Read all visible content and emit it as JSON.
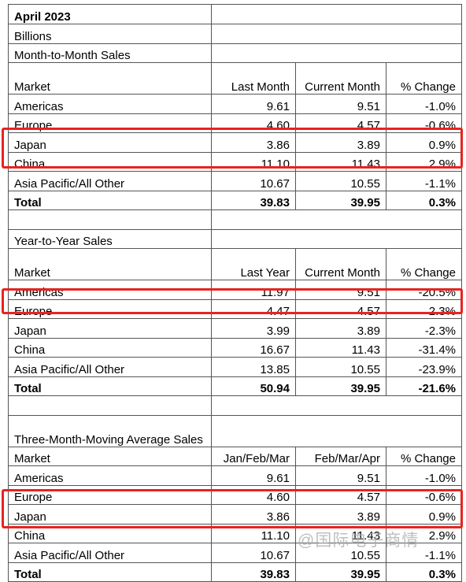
{
  "title": "April 2023",
  "unit": "Billions",
  "sections": [
    {
      "title": "Month-to-Month Sales",
      "columns": [
        "Market",
        "Last Month",
        "Current Month",
        "% Change"
      ],
      "rows": [
        [
          "Americas",
          "9.61",
          "9.51",
          "-1.0%"
        ],
        [
          "Europe",
          "4.60",
          "4.57",
          "-0.6%"
        ],
        [
          "Japan",
          "3.86",
          "3.89",
          "0.9%"
        ],
        [
          "China",
          "11.10",
          "11.43",
          "2.9%"
        ],
        [
          "Asia Pacific/All Other",
          "10.67",
          "10.55",
          "-1.1%"
        ],
        [
          "Total",
          "39.83",
          "39.95",
          "0.3%"
        ]
      ]
    },
    {
      "title": "Year-to-Year Sales",
      "columns": [
        "Market",
        "Last Year",
        "Current Month",
        "% Change"
      ],
      "rows": [
        [
          "Americas",
          "11.97",
          "9.51",
          "-20.5%"
        ],
        [
          "Europe",
          "4.47",
          "4.57",
          "2.3%"
        ],
        [
          "Japan",
          "3.99",
          "3.89",
          "-2.3%"
        ],
        [
          "China",
          "16.67",
          "11.43",
          "-31.4%"
        ],
        [
          "Asia Pacific/All Other",
          "13.85",
          "10.55",
          "-23.9%"
        ],
        [
          "Total",
          "50.94",
          "39.95",
          "-21.6%"
        ]
      ]
    },
    {
      "title": "Three-Month-Moving Average Sales",
      "columns": [
        "Market",
        "Jan/Feb/Mar",
        "Feb/Mar/Apr",
        "% Change"
      ],
      "rows": [
        [
          "Americas",
          "9.61",
          "9.51",
          "-1.0%"
        ],
        [
          "Europe",
          "4.60",
          "4.57",
          "-0.6%"
        ],
        [
          "Japan",
          "3.86",
          "3.89",
          "0.9%"
        ],
        [
          "China",
          "11.10",
          "11.43",
          "2.9%"
        ],
        [
          "Asia Pacific/All Other",
          "10.67",
          "10.55",
          "-1.1%"
        ],
        [
          "Total",
          "39.83",
          "39.95",
          "0.3%"
        ]
      ]
    }
  ],
  "watermark": "@国际电子商情"
}
